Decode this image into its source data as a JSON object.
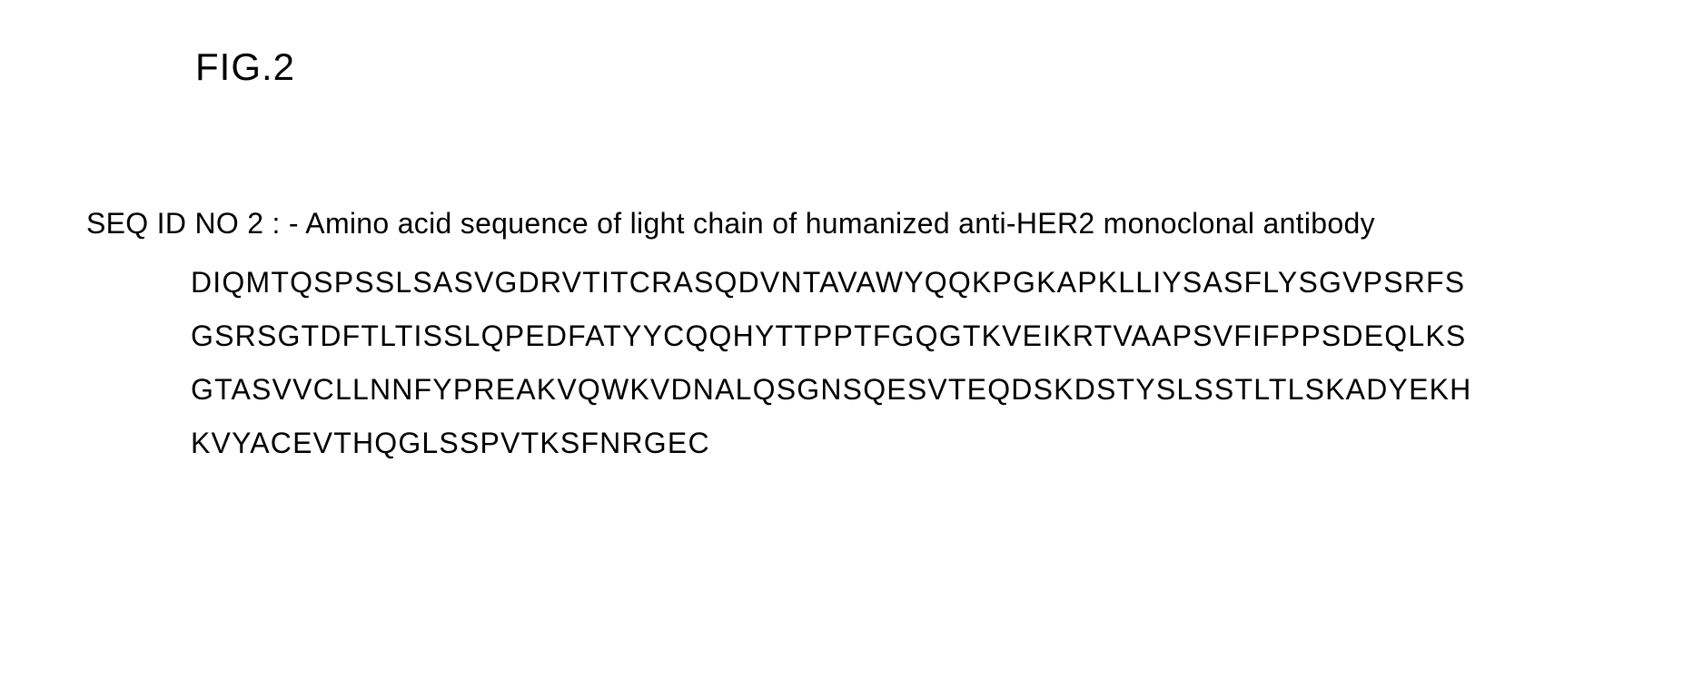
{
  "figure": {
    "label": "FIG.2"
  },
  "sequence": {
    "header": "SEQ ID NO 2 : - Amino acid sequence of light chain of humanized anti-HER2 monoclonal antibody",
    "lines": [
      "DIQMTQSPSSLSASVGDRVTITCRASQDVNTAVAWYQQKPGKAPKLLIYSASFLYSGVPSRFS",
      "GSRSGTDFTLTISSLQPEDFATYYCQQHYTTPPTFGQGTKVEIKRTVAAPSVFIFPPSDEQLKS",
      "GTASVVCLLNNFYPREAKVQWKVDNALQSGNSQESVTEQDSKDSTYSLSSTLTLSKADYEKH",
      "KVYACEVTHQGLSSPVTKSFNRGEC"
    ]
  }
}
